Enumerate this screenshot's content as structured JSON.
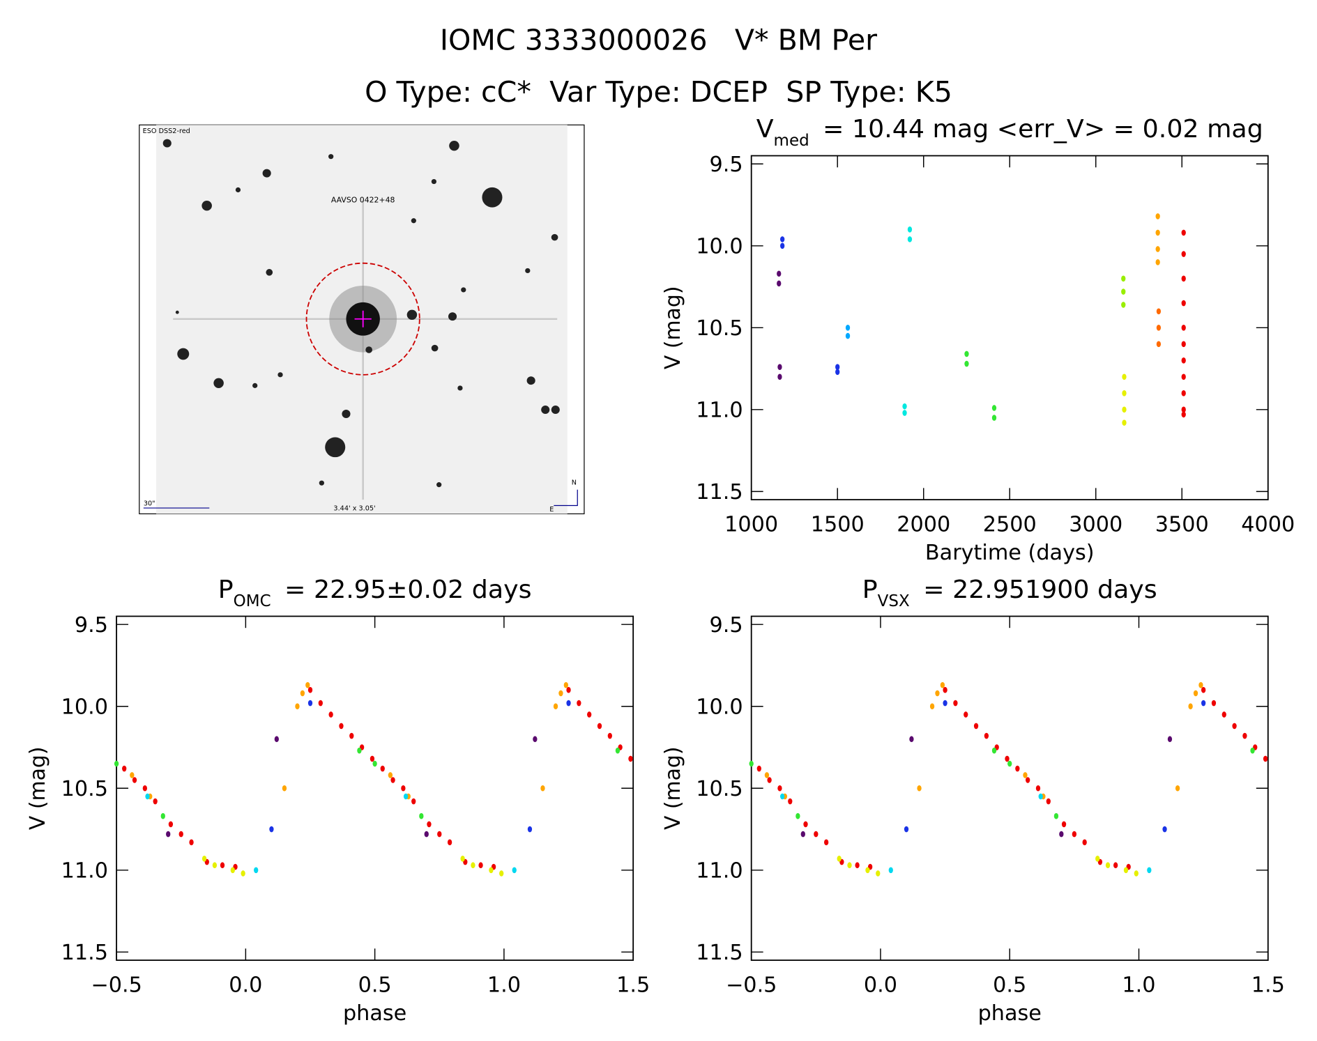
{
  "title": "IOMC 3333000026   V* BM Per",
  "subtitle": "O Type: cC*  Var Type: DCEP  SP Type: K5",
  "image": {
    "survey": "ESO DSS2-red",
    "target": "AAVSO 0422+48",
    "scale": "30\"",
    "fov": "3.44' x 3.05'",
    "north": "N",
    "east": "E"
  },
  "chart_data": [
    {
      "type": "scatter",
      "title": {
        "symbol": "V",
        "subscript": "med",
        "text": "= 10.44 mag <err_V> = 0.02 mag"
      },
      "xlabel": "Barytime (days)",
      "ylabel": "V (mag)",
      "xlim": [
        1000,
        4000
      ],
      "ylim": [
        9.45,
        11.55
      ],
      "y_inverted": true,
      "xticks": [
        1000,
        1500,
        2000,
        2500,
        3000,
        3500,
        4000
      ],
      "yticks": [
        9.5,
        {
          "value": 10,
          "label": "10.0"
        },
        10.5,
        {
          "value": 11,
          "label": "11.0"
        },
        11.5
      ],
      "series": [
        {
          "color": "#5a0a6e",
          "x": [
            1160,
            1160,
            1165,
            1165
          ],
          "y": [
            10.17,
            10.23,
            10.74,
            10.8
          ]
        },
        {
          "color": "#1a33e6",
          "x": [
            1180,
            1180,
            1500,
            1500
          ],
          "y": [
            9.96,
            10.0,
            10.74,
            10.77
          ]
        },
        {
          "color": "#00a8ff",
          "x": [
            1560,
            1560
          ],
          "y": [
            10.5,
            10.55
          ]
        },
        {
          "color": "#00e8e0",
          "x": [
            1890,
            1890,
            1920,
            1920
          ],
          "y": [
            10.98,
            11.02,
            9.9,
            9.96
          ]
        },
        {
          "color": "#33e633",
          "x": [
            2250,
            2250,
            2410,
            2410
          ],
          "y": [
            10.66,
            10.72,
            10.99,
            11.05
          ]
        },
        {
          "color": "#99ee00",
          "x": [
            3160,
            3160,
            3160
          ],
          "y": [
            10.2,
            10.28,
            10.36
          ]
        },
        {
          "color": "#e6f000",
          "x": [
            3165,
            3165,
            3165,
            3165
          ],
          "y": [
            10.8,
            10.9,
            11.0,
            11.08
          ]
        },
        {
          "color": "#ffa500",
          "x": [
            3360,
            3360,
            3360,
            3360
          ],
          "y": [
            9.82,
            9.92,
            10.02,
            10.1
          ]
        },
        {
          "color": "#ff6a00",
          "x": [
            3365,
            3365,
            3365
          ],
          "y": [
            10.4,
            10.5,
            10.6
          ]
        },
        {
          "color": "#ee0000",
          "x": [
            3510,
            3510,
            3510,
            3510,
            3510,
            3510,
            3510,
            3510,
            3510,
            3510,
            3510
          ],
          "y": [
            9.92,
            10.05,
            10.2,
            10.35,
            10.5,
            10.6,
            10.7,
            10.8,
            10.9,
            11.0,
            11.03
          ]
        }
      ]
    },
    {
      "type": "scatter",
      "title": {
        "symbol": "P",
        "subscript": "OMC",
        "text": "= 22.95±0.02 days"
      },
      "xlabel": "phase",
      "ylabel": "V (mag)",
      "xlim": [
        -0.5,
        1.5
      ],
      "ylim": [
        9.45,
        11.55
      ],
      "y_inverted": true,
      "xticks": [
        {
          "value": -0.5,
          "label": "−0.5"
        },
        {
          "value": 0,
          "label": "0.0"
        },
        0.5,
        {
          "value": 1,
          "label": "1.0"
        },
        1.5
      ],
      "yticks": [
        9.5,
        {
          "value": 10,
          "label": "10.0"
        },
        10.5,
        {
          "value": 11,
          "label": "11.0"
        },
        11.5
      ],
      "series": [
        {
          "color": "#ee0000",
          "x": [
            0.25,
            1.25,
            0.29,
            1.29,
            0.33,
            1.33,
            0.37,
            1.37,
            0.41,
            1.41,
            0.45,
            1.45,
            0.49,
            1.49,
            -0.47,
            0.53,
            -0.43,
            0.57,
            -0.39,
            0.61,
            -0.35,
            0.65,
            -0.29,
            0.71,
            -0.25,
            0.75,
            -0.21,
            0.79,
            -0.15,
            0.85,
            -0.09,
            0.91,
            -0.04,
            0.96
          ],
          "y": [
            9.9,
            9.9,
            9.98,
            9.98,
            10.05,
            10.05,
            10.12,
            10.12,
            10.18,
            10.18,
            10.25,
            10.25,
            10.32,
            10.32,
            10.38,
            10.38,
            10.45,
            10.45,
            10.5,
            10.5,
            10.58,
            10.58,
            10.72,
            10.72,
            10.78,
            10.78,
            10.83,
            10.83,
            10.95,
            10.95,
            10.97,
            10.97,
            10.98,
            10.98
          ]
        },
        {
          "color": "#ffa500",
          "x": [
            0.15,
            1.15,
            0.2,
            1.2,
            0.22,
            1.22,
            0.24,
            1.24,
            -0.44,
            0.56,
            -0.37,
            0.63
          ],
          "y": [
            10.5,
            10.5,
            10.0,
            10.0,
            9.92,
            9.92,
            9.87,
            9.87,
            10.42,
            10.42,
            10.55,
            10.55
          ]
        },
        {
          "color": "#e6f000",
          "x": [
            -0.16,
            0.84,
            -0.12,
            0.88,
            -0.05,
            0.95,
            -0.01,
            0.99
          ],
          "y": [
            10.93,
            10.93,
            10.97,
            10.97,
            11.0,
            11.0,
            11.02,
            11.02
          ]
        },
        {
          "color": "#33e633",
          "x": [
            0.44,
            1.44,
            -0.5,
            0.5,
            -0.32,
            0.68
          ],
          "y": [
            10.27,
            10.27,
            10.35,
            10.35,
            10.67,
            10.67
          ]
        },
        {
          "color": "#00d8f0",
          "x": [
            0.04,
            1.04,
            -0.38,
            0.62
          ],
          "y": [
            11.0,
            11.0,
            10.55,
            10.55
          ]
        },
        {
          "color": "#1a33e6",
          "x": [
            0.1,
            1.1,
            0.25,
            1.25
          ],
          "y": [
            10.75,
            10.75,
            9.98,
            9.98
          ]
        },
        {
          "color": "#5a0a6e",
          "x": [
            0.12,
            1.12,
            -0.3,
            0.7
          ],
          "y": [
            10.2,
            10.2,
            10.78,
            10.78
          ]
        }
      ]
    },
    {
      "type": "scatter",
      "title": {
        "symbol": "P",
        "subscript": "VSX",
        "text": "= 22.951900 days"
      },
      "xlabel": "phase",
      "ylabel": "V (mag)",
      "xlim": [
        -0.5,
        1.5
      ],
      "ylim": [
        9.45,
        11.55
      ],
      "y_inverted": true,
      "xticks": [
        {
          "value": -0.5,
          "label": "−0.5"
        },
        {
          "value": 0,
          "label": "0.0"
        },
        0.5,
        {
          "value": 1,
          "label": "1.0"
        },
        1.5
      ],
      "yticks": [
        9.5,
        {
          "value": 10,
          "label": "10.0"
        },
        10.5,
        {
          "value": 11,
          "label": "11.0"
        },
        11.5
      ],
      "series": [
        {
          "color": "#ee0000",
          "x": [
            0.25,
            1.25,
            0.29,
            1.29,
            0.33,
            1.33,
            0.37,
            1.37,
            0.41,
            1.41,
            0.45,
            1.45,
            0.49,
            1.49,
            -0.47,
            0.53,
            -0.43,
            0.57,
            -0.39,
            0.61,
            -0.35,
            0.65,
            -0.29,
            0.71,
            -0.25,
            0.75,
            -0.21,
            0.79,
            -0.15,
            0.85,
            -0.09,
            0.91,
            -0.04,
            0.96
          ],
          "y": [
            9.9,
            9.9,
            9.98,
            9.98,
            10.05,
            10.05,
            10.12,
            10.12,
            10.18,
            10.18,
            10.25,
            10.25,
            10.32,
            10.32,
            10.38,
            10.38,
            10.45,
            10.45,
            10.5,
            10.5,
            10.58,
            10.58,
            10.72,
            10.72,
            10.78,
            10.78,
            10.83,
            10.83,
            10.95,
            10.95,
            10.97,
            10.97,
            10.98,
            10.98
          ]
        },
        {
          "color": "#ffa500",
          "x": [
            0.15,
            1.15,
            0.2,
            1.2,
            0.22,
            1.22,
            0.24,
            1.24,
            -0.44,
            0.56,
            -0.37,
            0.63
          ],
          "y": [
            10.5,
            10.5,
            10.0,
            10.0,
            9.92,
            9.92,
            9.87,
            9.87,
            10.42,
            10.42,
            10.55,
            10.55
          ]
        },
        {
          "color": "#e6f000",
          "x": [
            -0.16,
            0.84,
            -0.12,
            0.88,
            -0.05,
            0.95,
            -0.01,
            0.99
          ],
          "y": [
            10.93,
            10.93,
            10.97,
            10.97,
            11.0,
            11.0,
            11.02,
            11.02
          ]
        },
        {
          "color": "#33e633",
          "x": [
            0.44,
            1.44,
            -0.5,
            0.5,
            -0.32,
            0.68
          ],
          "y": [
            10.27,
            10.27,
            10.35,
            10.35,
            10.67,
            10.67
          ]
        },
        {
          "color": "#00d8f0",
          "x": [
            0.04,
            1.04,
            -0.38,
            0.62
          ],
          "y": [
            11.0,
            11.0,
            10.55,
            10.55
          ]
        },
        {
          "color": "#1a33e6",
          "x": [
            0.1,
            1.1,
            0.25,
            1.25
          ],
          "y": [
            10.75,
            10.75,
            9.98,
            9.98
          ]
        },
        {
          "color": "#5a0a6e",
          "x": [
            0.12,
            1.12,
            -0.3,
            0.7
          ],
          "y": [
            10.2,
            10.2,
            10.78,
            10.78
          ]
        }
      ]
    }
  ]
}
